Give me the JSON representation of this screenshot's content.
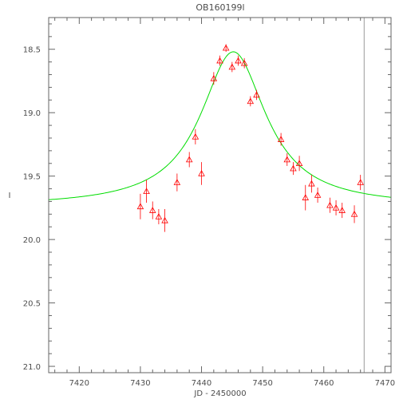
{
  "chart_data": {
    "type": "scatter",
    "title": "OB160199l",
    "xlabel": "JD - 2450000",
    "ylabel": "I",
    "xlim": [
      7415,
      7471
    ],
    "ylim": [
      21.05,
      18.25
    ],
    "y_inverted": true,
    "grid": false,
    "legend": "none",
    "x_ticks": [
      7420,
      7430,
      7440,
      7450,
      7460,
      7470
    ],
    "x_tick_labels": [
      "7420",
      "7430",
      "7440",
      "7450",
      "7460",
      "7470"
    ],
    "y_ticks": [
      18.5,
      19.0,
      19.5,
      20.0,
      20.5,
      21.0
    ],
    "y_tick_labels": [
      "18.5",
      "19.0",
      "19.5",
      "20.0",
      "20.5",
      "21.0"
    ],
    "colors": {
      "points": "#ff0000",
      "model": "#00dd00",
      "marker_line": "#999999",
      "axes": "#666666",
      "text": "#4d4d4d"
    },
    "vertical_marker_x": 7466.6,
    "model": {
      "t0": 7445.2,
      "baseline": 19.74,
      "peak": 18.52,
      "width": 6.5
    },
    "series": [
      {
        "type": "scatter",
        "marker": "triangle",
        "points": [
          {
            "x": 7430.0,
            "y": 19.74,
            "err": 0.1
          },
          {
            "x": 7431.0,
            "y": 19.62,
            "err": 0.09
          },
          {
            "x": 7432.0,
            "y": 19.77,
            "err": 0.07
          },
          {
            "x": 7433.0,
            "y": 19.82,
            "err": 0.06
          },
          {
            "x": 7434.0,
            "y": 19.85,
            "err": 0.09
          },
          {
            "x": 7436.0,
            "y": 19.55,
            "err": 0.07
          },
          {
            "x": 7438.0,
            "y": 19.37,
            "err": 0.06
          },
          {
            "x": 7439.0,
            "y": 19.19,
            "err": 0.06
          },
          {
            "x": 7440.0,
            "y": 19.48,
            "err": 0.09
          },
          {
            "x": 7442.0,
            "y": 18.73,
            "err": 0.05
          },
          {
            "x": 7443.0,
            "y": 18.59,
            "err": 0.04
          },
          {
            "x": 7444.0,
            "y": 18.49,
            "err": 0.03
          },
          {
            "x": 7445.0,
            "y": 18.64,
            "err": 0.04
          },
          {
            "x": 7446.0,
            "y": 18.59,
            "err": 0.04
          },
          {
            "x": 7447.0,
            "y": 18.61,
            "err": 0.04
          },
          {
            "x": 7448.0,
            "y": 18.91,
            "err": 0.04
          },
          {
            "x": 7449.0,
            "y": 18.86,
            "err": 0.04
          },
          {
            "x": 7453.0,
            "y": 19.21,
            "err": 0.05
          },
          {
            "x": 7454.0,
            "y": 19.37,
            "err": 0.05
          },
          {
            "x": 7455.0,
            "y": 19.44,
            "err": 0.05
          },
          {
            "x": 7456.0,
            "y": 19.4,
            "err": 0.06
          },
          {
            "x": 7457.0,
            "y": 19.67,
            "err": 0.1
          },
          {
            "x": 7458.0,
            "y": 19.56,
            "err": 0.07
          },
          {
            "x": 7459.0,
            "y": 19.65,
            "err": 0.06
          },
          {
            "x": 7461.0,
            "y": 19.73,
            "err": 0.06
          },
          {
            "x": 7462.0,
            "y": 19.75,
            "err": 0.06
          },
          {
            "x": 7463.0,
            "y": 19.77,
            "err": 0.06
          },
          {
            "x": 7465.0,
            "y": 19.8,
            "err": 0.07
          },
          {
            "x": 7466.0,
            "y": 19.55,
            "err": 0.06
          }
        ]
      }
    ]
  }
}
